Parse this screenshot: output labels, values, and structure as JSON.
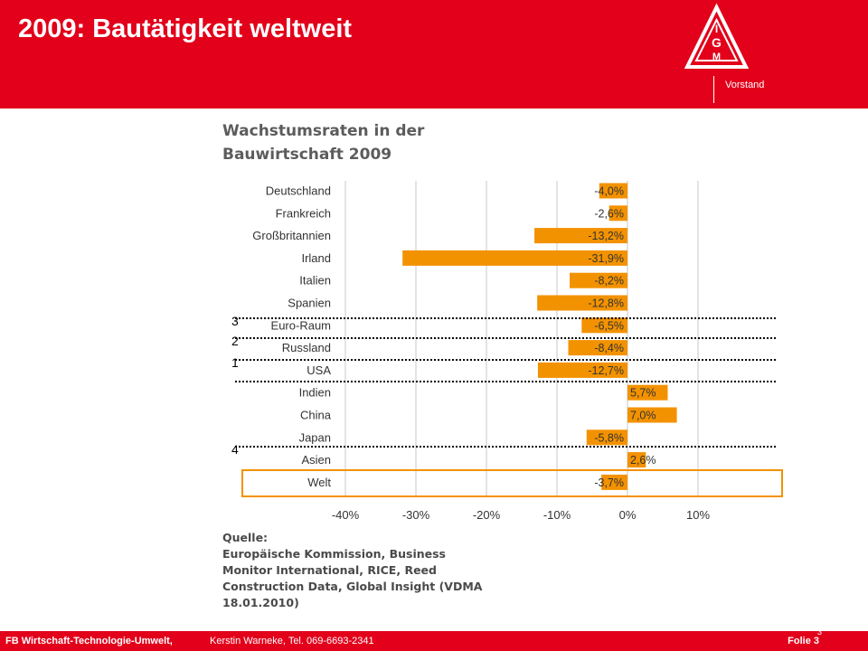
{
  "header": {
    "title": "2009: Bautätigkeit weltweit",
    "org_label": "Vorstand",
    "logo_letters": "IG M"
  },
  "chart_data": {
    "type": "bar",
    "title_lines": [
      "Wachstumsraten in der",
      "Bauwirtschaft 2009"
    ],
    "categories": [
      "Deutschland",
      "Frankreich",
      "Großbritannien",
      "Irland",
      "Italien",
      "Spanien",
      "Euro-Raum",
      "Russland",
      "USA",
      "Indien",
      "China",
      "Japan",
      "Asien",
      "Welt"
    ],
    "values": [
      -4.0,
      -2.6,
      -13.2,
      -31.9,
      -8.2,
      -12.8,
      -6.5,
      -8.4,
      -12.7,
      5.7,
      7.0,
      -5.8,
      2.6,
      -3.7
    ],
    "value_labels": [
      "-4,0%",
      "-2,6%",
      "-13,2%",
      "-31,9%",
      "-8,2%",
      "-12,8%",
      "-6,5%",
      "-8,4%",
      "-12,7%",
      "5,7%",
      "7,0%",
      "-5,8%",
      "2,6%",
      "-3,7%"
    ],
    "x_ticks": [
      "-40%",
      "-30%",
      "-20%",
      "-10%",
      "0%",
      "10%"
    ],
    "xlim": [
      -40,
      10
    ],
    "grid": true,
    "bar_color": "#f39200",
    "annotations": [
      "3",
      "2",
      "1",
      "4"
    ],
    "source_lines": [
      "Quelle:",
      "Europäische Kommission, Business",
      "Monitor International, RICE, Reed",
      "Construction Data, Global Insight (VDMA",
      "18.01.2010)"
    ]
  },
  "footer": {
    "department": "FB Wirtschaft-Technologie-Umwelt,",
    "author": "Kerstin Warneke, Tel. 069-6693-2341",
    "slide": "Folie 3",
    "page_number": "3"
  },
  "colors": {
    "brand_red": "#e2001a",
    "bar_orange": "#f39200"
  }
}
